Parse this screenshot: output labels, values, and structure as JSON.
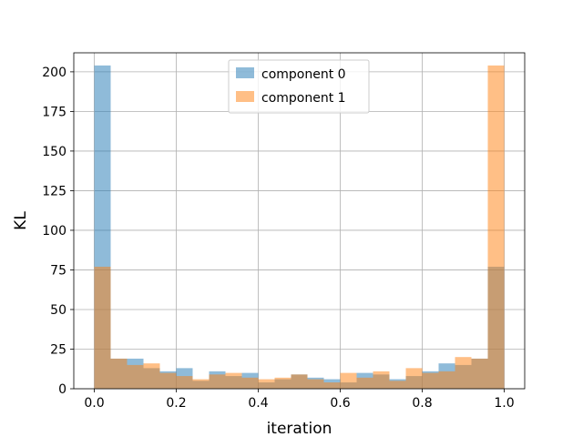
{
  "chart_data": {
    "type": "bar",
    "title": "",
    "xlabel": "iteration",
    "ylabel": "KL",
    "xlim": [
      -0.05,
      1.05
    ],
    "ylim": [
      0,
      212
    ],
    "xticks": [
      0.0,
      0.2,
      0.4,
      0.6,
      0.8,
      1.0
    ],
    "xtick_labels": [
      "0.0",
      "0.2",
      "0.4",
      "0.6",
      "0.8",
      "1.0"
    ],
    "yticks": [
      0,
      25,
      50,
      75,
      100,
      125,
      150,
      175,
      200
    ],
    "ytick_labels": [
      "0",
      "25",
      "50",
      "75",
      "100",
      "125",
      "150",
      "175",
      "200"
    ],
    "grid": true,
    "legend_position": "upper center",
    "bin_width": 0.04,
    "bin_starts": [
      0.0,
      0.04,
      0.08,
      0.12,
      0.16,
      0.2,
      0.24,
      0.28,
      0.32,
      0.36,
      0.4,
      0.44,
      0.48,
      0.52,
      0.56,
      0.6,
      0.64,
      0.68,
      0.72,
      0.76,
      0.8,
      0.84,
      0.88,
      0.92,
      0.96
    ],
    "series": [
      {
        "name": "component 0",
        "color": "#1f77b4",
        "alpha": 0.5,
        "values": [
          204,
          19,
          19,
          13,
          11,
          13,
          5,
          11,
          8,
          10,
          4,
          6,
          9,
          7,
          6,
          4,
          10,
          9,
          6,
          8,
          11,
          16,
          15,
          19,
          77
        ]
      },
      {
        "name": "component 1",
        "color": "#ff7f0e",
        "alpha": 0.5,
        "values": [
          77,
          19,
          15,
          16,
          10,
          8,
          6,
          9,
          10,
          7,
          6,
          7,
          9,
          6,
          4,
          10,
          7,
          11,
          5,
          13,
          10,
          11,
          20,
          19,
          204
        ]
      }
    ]
  }
}
